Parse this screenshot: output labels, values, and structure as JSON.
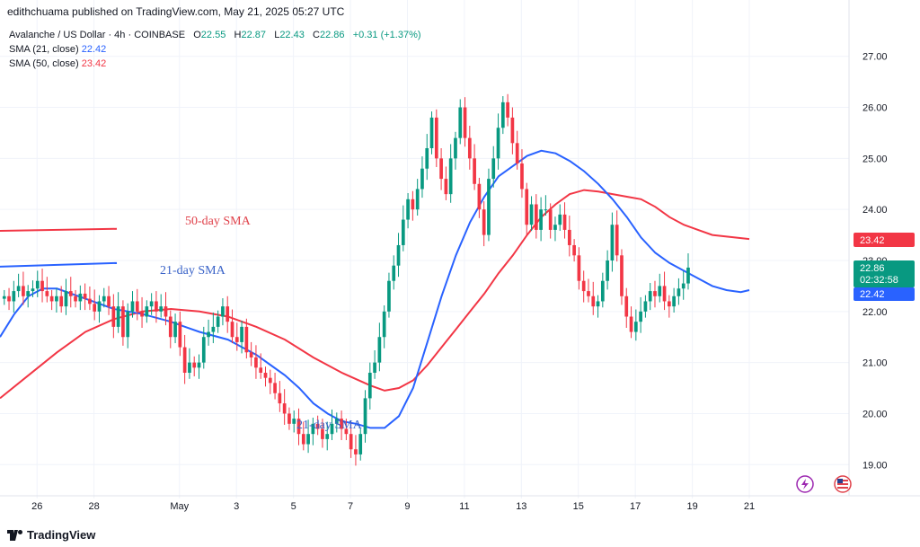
{
  "header": {
    "publisher": "edithchuama published on TradingView.com, May 21, 2025 05:27 UTC"
  },
  "legend": {
    "symbol": "Avalanche / US Dollar · 4h · COINBASE",
    "o_label": "O",
    "o": "22.55",
    "h_label": "H",
    "h": "22.87",
    "l_label": "L",
    "l": "22.43",
    "c_label": "C",
    "c": "22.86",
    "change": "+0.31 (+1.37%)",
    "sma21_label": "SMA (21, close)",
    "sma21_value": "22.42",
    "sma50_label": "SMA (50, close)",
    "sma50_value": "23.42"
  },
  "annotations": {
    "sma50_text": "50-day SMA",
    "sma21_text": "21-day SMA",
    "sma21_text_lower": "21-day SMA"
  },
  "price_labels": {
    "sma50": "23.42",
    "last": "22.86",
    "countdown": "02:32:58",
    "sma21": "22.42"
  },
  "footer": {
    "brand": "TradingView"
  },
  "colors": {
    "up": "#089981",
    "down": "#f23645",
    "sma21": "#2962ff",
    "sma50": "#f23645",
    "grid": "#f0f3fa"
  },
  "chart_data": {
    "type": "candlestick",
    "ylim": [
      18.6,
      27.4
    ],
    "yticks": [
      "19.00",
      "20.00",
      "21.00",
      "22.00",
      "23.00",
      "24.00",
      "25.00",
      "26.00",
      "27.00"
    ],
    "xticks": [
      {
        "label": "26",
        "x": 1.3
      },
      {
        "label": "28",
        "x": 3.3
      },
      {
        "label": "May",
        "x": 6.3
      },
      {
        "label": "3",
        "x": 8.3
      },
      {
        "label": "5",
        "x": 10.3
      },
      {
        "label": "7",
        "x": 12.3
      },
      {
        "label": "9",
        "x": 14.3
      },
      {
        "label": "11",
        "x": 16.3
      },
      {
        "label": "13",
        "x": 18.3
      },
      {
        "label": "15",
        "x": 20.3
      },
      {
        "label": "17",
        "x": 22.3
      },
      {
        "label": "19",
        "x": 24.3
      },
      {
        "label": "21",
        "x": 26.3
      }
    ],
    "xlim": [
      0,
      29.8
    ],
    "candle_step_days": 0.1667,
    "closes": [
      22.3,
      22.2,
      22.4,
      22.5,
      22.3,
      22.4,
      22.45,
      22.6,
      22.4,
      22.3,
      22.2,
      22.3,
      22.1,
      22.4,
      22.3,
      22.2,
      22.35,
      22.25,
      22.15,
      22.0,
      22.2,
      22.3,
      22.1,
      21.7,
      22.1,
      21.5,
      22.0,
      22.2,
      22.0,
      21.9,
      22.1,
      22.2,
      22.0,
      22.1,
      21.9,
      21.5,
      21.8,
      21.3,
      20.8,
      21.0,
      20.9,
      21.0,
      21.5,
      21.6,
      21.7,
      21.9,
      22.1,
      21.8,
      21.5,
      21.4,
      21.7,
      21.2,
      21.1,
      20.9,
      20.8,
      20.7,
      20.6,
      20.4,
      20.2,
      20.0,
      19.8,
      19.9,
      19.6,
      19.4,
      19.6,
      19.8,
      19.7,
      19.5,
      19.6,
      19.8,
      19.9,
      19.7,
      19.6,
      19.3,
      19.2,
      19.6,
      20.3,
      20.8,
      21.0,
      21.5,
      22.0,
      22.6,
      22.9,
      23.3,
      23.8,
      24.2,
      24.0,
      24.4,
      24.8,
      25.2,
      25.8,
      25.0,
      24.6,
      24.3,
      25.0,
      25.4,
      26.0,
      25.4,
      25.0,
      24.5,
      24.0,
      23.5,
      24.6,
      25.0,
      25.6,
      26.1,
      25.8,
      25.3,
      24.9,
      24.4,
      23.7,
      24.1,
      23.6,
      24.0,
      24.0,
      23.6,
      23.7,
      23.9,
      23.6,
      23.3,
      23.1,
      22.6,
      22.4,
      22.3,
      22.1,
      22.2,
      22.6,
      23.0,
      23.7,
      23.1,
      22.3,
      21.9,
      21.6,
      21.8,
      22.0,
      22.2,
      22.4,
      22.3,
      22.5,
      22.2,
      22.1,
      22.3,
      22.45,
      22.55,
      22.86
    ],
    "sma21_points": [
      [
        0,
        21.5
      ],
      [
        0.5,
        21.95
      ],
      [
        1.0,
        22.3
      ],
      [
        1.5,
        22.45
      ],
      [
        2.0,
        22.45
      ],
      [
        2.5,
        22.35
      ],
      [
        3.0,
        22.25
      ],
      [
        4.0,
        22.05
      ],
      [
        5.0,
        21.95
      ],
      [
        6.0,
        21.8
      ],
      [
        6.5,
        21.7
      ],
      [
        7.0,
        21.6
      ],
      [
        8.0,
        21.45
      ],
      [
        8.5,
        21.3
      ],
      [
        9.0,
        21.15
      ],
      [
        9.5,
        20.95
      ],
      [
        10.0,
        20.75
      ],
      [
        10.5,
        20.5
      ],
      [
        11.0,
        20.2
      ],
      [
        11.5,
        20.0
      ],
      [
        12.0,
        19.85
      ],
      [
        12.5,
        19.8
      ],
      [
        13.0,
        19.72
      ],
      [
        13.5,
        19.72
      ],
      [
        14.0,
        19.95
      ],
      [
        14.5,
        20.5
      ],
      [
        15.0,
        21.4
      ],
      [
        15.5,
        22.3
      ],
      [
        16.0,
        23.1
      ],
      [
        16.5,
        23.75
      ],
      [
        17.0,
        24.25
      ],
      [
        17.5,
        24.65
      ],
      [
        18.0,
        24.85
      ],
      [
        18.5,
        25.05
      ],
      [
        19.0,
        25.15
      ],
      [
        19.5,
        25.1
      ],
      [
        20.0,
        24.95
      ],
      [
        20.5,
        24.75
      ],
      [
        21.0,
        24.5
      ],
      [
        21.5,
        24.2
      ],
      [
        22.0,
        23.85
      ],
      [
        22.5,
        23.45
      ],
      [
        23.0,
        23.15
      ],
      [
        23.5,
        22.95
      ],
      [
        24.0,
        22.8
      ],
      [
        24.5,
        22.65
      ],
      [
        25.0,
        22.5
      ],
      [
        25.5,
        22.42
      ],
      [
        26.0,
        22.38
      ],
      [
        26.3,
        22.42
      ]
    ],
    "sma50_points": [
      [
        0,
        20.3
      ],
      [
        1.0,
        20.75
      ],
      [
        2.0,
        21.2
      ],
      [
        3.0,
        21.6
      ],
      [
        4.0,
        21.85
      ],
      [
        5.0,
        22.0
      ],
      [
        6.0,
        22.05
      ],
      [
        7.0,
        22.0
      ],
      [
        8.0,
        21.9
      ],
      [
        9.0,
        21.7
      ],
      [
        10.0,
        21.45
      ],
      [
        11.0,
        21.1
      ],
      [
        12.0,
        20.8
      ],
      [
        13.0,
        20.55
      ],
      [
        13.5,
        20.45
      ],
      [
        14.0,
        20.5
      ],
      [
        14.5,
        20.65
      ],
      [
        15.0,
        20.95
      ],
      [
        15.5,
        21.3
      ],
      [
        16.0,
        21.65
      ],
      [
        16.5,
        22.0
      ],
      [
        17.0,
        22.35
      ],
      [
        17.5,
        22.75
      ],
      [
        18.0,
        23.1
      ],
      [
        18.5,
        23.5
      ],
      [
        19.0,
        23.85
      ],
      [
        19.5,
        24.1
      ],
      [
        20.0,
        24.3
      ],
      [
        20.5,
        24.38
      ],
      [
        21.0,
        24.35
      ],
      [
        21.5,
        24.3
      ],
      [
        22.0,
        24.25
      ],
      [
        22.5,
        24.2
      ],
      [
        23.0,
        24.05
      ],
      [
        23.5,
        23.85
      ],
      [
        24.0,
        23.7
      ],
      [
        24.5,
        23.6
      ],
      [
        25.0,
        23.5
      ],
      [
        26.3,
        23.42
      ]
    ],
    "grid": true,
    "legend_position": "top-left"
  }
}
